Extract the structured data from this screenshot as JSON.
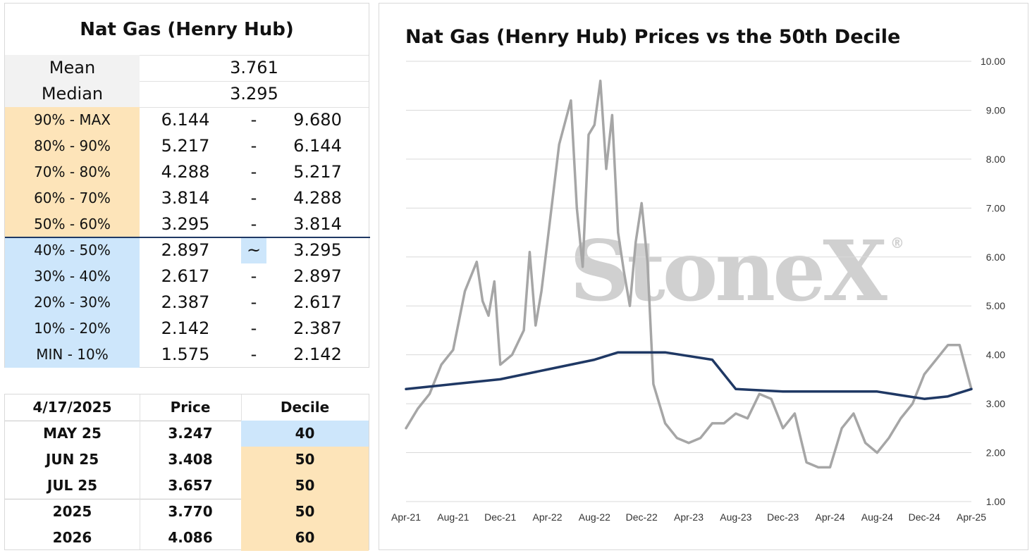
{
  "stats": {
    "title": "Nat Gas (Henry Hub)",
    "mean_label": "Mean",
    "mean_value": "3.761",
    "median_label": "Median",
    "median_value": "3.295",
    "ranges": [
      {
        "label": "90% - MAX",
        "low": "6.144",
        "sep": "-",
        "high": "9.680",
        "band": "orange"
      },
      {
        "label": "80% - 90%",
        "low": "5.217",
        "sep": "-",
        "high": "6.144",
        "band": "orange"
      },
      {
        "label": "70% - 80%",
        "low": "4.288",
        "sep": "-",
        "high": "5.217",
        "band": "orange"
      },
      {
        "label": "60% - 70%",
        "low": "3.814",
        "sep": "-",
        "high": "4.288",
        "band": "orange"
      },
      {
        "label": "50% - 60%",
        "low": "3.295",
        "sep": "-",
        "high": "3.814",
        "band": "orange"
      },
      {
        "label": "40% - 50%",
        "low": "2.897",
        "sep": "~",
        "high": "3.295",
        "band": "blue"
      },
      {
        "label": "30% - 40%",
        "low": "2.617",
        "sep": "-",
        "high": "2.897",
        "band": "blue"
      },
      {
        "label": "20% - 30%",
        "low": "2.387",
        "sep": "-",
        "high": "2.617",
        "band": "blue"
      },
      {
        "label": "10% - 20%",
        "low": "2.142",
        "sep": "-",
        "high": "2.387",
        "band": "blue"
      },
      {
        "label": "MIN - 10%",
        "low": "1.575",
        "sep": "-",
        "high": "2.142",
        "band": "blue"
      }
    ]
  },
  "price_table": {
    "headers": [
      "4/17/2025",
      "Price",
      "Decile"
    ],
    "rows": [
      {
        "contract": "MAY 25",
        "price": "3.247",
        "decile": "40",
        "band": "blue"
      },
      {
        "contract": "JUN 25",
        "price": "3.408",
        "decile": "50",
        "band": "orange"
      },
      {
        "contract": "JUL 25",
        "price": "3.657",
        "decile": "50",
        "band": "orange"
      },
      {
        "contract": "2025",
        "price": "3.770",
        "decile": "50",
        "band": "orange"
      },
      {
        "contract": "2026",
        "price": "4.086",
        "decile": "60",
        "band": "orange"
      }
    ]
  },
  "colors": {
    "orange_band": "#fde4b9",
    "blue_band": "#cde6fb",
    "price_line": "#a6a6a6",
    "decile_line": "#1f3864"
  },
  "watermark": {
    "text": "StoneX",
    "mark": "®"
  },
  "chart_data": {
    "type": "line",
    "title": "Nat Gas (Henry Hub) Prices vs the 50th Decile",
    "x_ticks": [
      "Apr-21",
      "Aug-21",
      "Dec-21",
      "Apr-22",
      "Aug-22",
      "Dec-22",
      "Apr-23",
      "Aug-23",
      "Dec-23",
      "Apr-24",
      "Aug-24",
      "Dec-24",
      "Apr-25"
    ],
    "y_ticks": [
      "1.00",
      "2.00",
      "3.00",
      "4.00",
      "5.00",
      "6.00",
      "7.00",
      "8.00",
      "9.00",
      "10.00"
    ],
    "ylim": [
      1,
      10
    ],
    "grid": true,
    "y_axis_side": "right",
    "legend": "none",
    "series": [
      {
        "role": "price",
        "points": [
          [
            "Apr-21",
            2.5
          ],
          [
            "May-21",
            2.9
          ],
          [
            "Jun-21",
            3.2
          ],
          [
            "Jul-21",
            3.8
          ],
          [
            "Aug-21",
            4.1
          ],
          [
            "Sep-21",
            5.3
          ],
          [
            "Oct-21",
            5.9
          ],
          [
            "Oct-21",
            5.1
          ],
          [
            "Nov-21",
            4.8
          ],
          [
            "Nov-21",
            5.5
          ],
          [
            "Dec-21",
            3.8
          ],
          [
            "Jan-22",
            4.0
          ],
          [
            "Feb-22",
            4.5
          ],
          [
            "Feb-22",
            6.1
          ],
          [
            "Mar-22",
            4.6
          ],
          [
            "Mar-22",
            5.3
          ],
          [
            "Apr-22",
            6.3
          ],
          [
            "May-22",
            8.3
          ],
          [
            "Jun-22",
            9.2
          ],
          [
            "Jun-22",
            7.0
          ],
          [
            "Jul-22",
            5.8
          ],
          [
            "Jul-22",
            8.5
          ],
          [
            "Aug-22",
            8.7
          ],
          [
            "Aug-22",
            9.6
          ],
          [
            "Sep-22",
            7.8
          ],
          [
            "Sep-22",
            8.9
          ],
          [
            "Oct-22",
            6.5
          ],
          [
            "Oct-22",
            5.7
          ],
          [
            "Nov-22",
            5.0
          ],
          [
            "Nov-22",
            6.3
          ],
          [
            "Dec-22",
            7.1
          ],
          [
            "Dec-22",
            5.9
          ],
          [
            "Jan-23",
            3.4
          ],
          [
            "Feb-23",
            2.6
          ],
          [
            "Mar-23",
            2.3
          ],
          [
            "Apr-23",
            2.2
          ],
          [
            "May-23",
            2.3
          ],
          [
            "Jun-23",
            2.6
          ],
          [
            "Jul-23",
            2.6
          ],
          [
            "Aug-23",
            2.8
          ],
          [
            "Sep-23",
            2.7
          ],
          [
            "Oct-23",
            3.2
          ],
          [
            "Nov-23",
            3.1
          ],
          [
            "Dec-23",
            2.5
          ],
          [
            "Jan-24",
            2.8
          ],
          [
            "Feb-24",
            1.8
          ],
          [
            "Mar-24",
            1.7
          ],
          [
            "Apr-24",
            1.7
          ],
          [
            "May-24",
            2.5
          ],
          [
            "Jun-24",
            2.8
          ],
          [
            "Jul-24",
            2.2
          ],
          [
            "Aug-24",
            2.0
          ],
          [
            "Sep-24",
            2.3
          ],
          [
            "Oct-24",
            2.7
          ],
          [
            "Nov-24",
            3.0
          ],
          [
            "Dec-24",
            3.6
          ],
          [
            "Jan-25",
            3.9
          ],
          [
            "Feb-25",
            4.2
          ],
          [
            "Mar-25",
            4.2
          ],
          [
            "Apr-25",
            3.3
          ]
        ]
      },
      {
        "role": "50th decile",
        "points": [
          [
            "Apr-21",
            3.3
          ],
          [
            "Aug-21",
            3.4
          ],
          [
            "Dec-21",
            3.5
          ],
          [
            "Apr-22",
            3.7
          ],
          [
            "Aug-22",
            3.9
          ],
          [
            "Oct-22",
            4.05
          ],
          [
            "Feb-23",
            4.05
          ],
          [
            "Jun-23",
            3.9
          ],
          [
            "Aug-23",
            3.3
          ],
          [
            "Dec-23",
            3.25
          ],
          [
            "Apr-24",
            3.25
          ],
          [
            "Aug-24",
            3.25
          ],
          [
            "Dec-24",
            3.1
          ],
          [
            "Feb-25",
            3.15
          ],
          [
            "Apr-25",
            3.3
          ]
        ]
      }
    ]
  }
}
